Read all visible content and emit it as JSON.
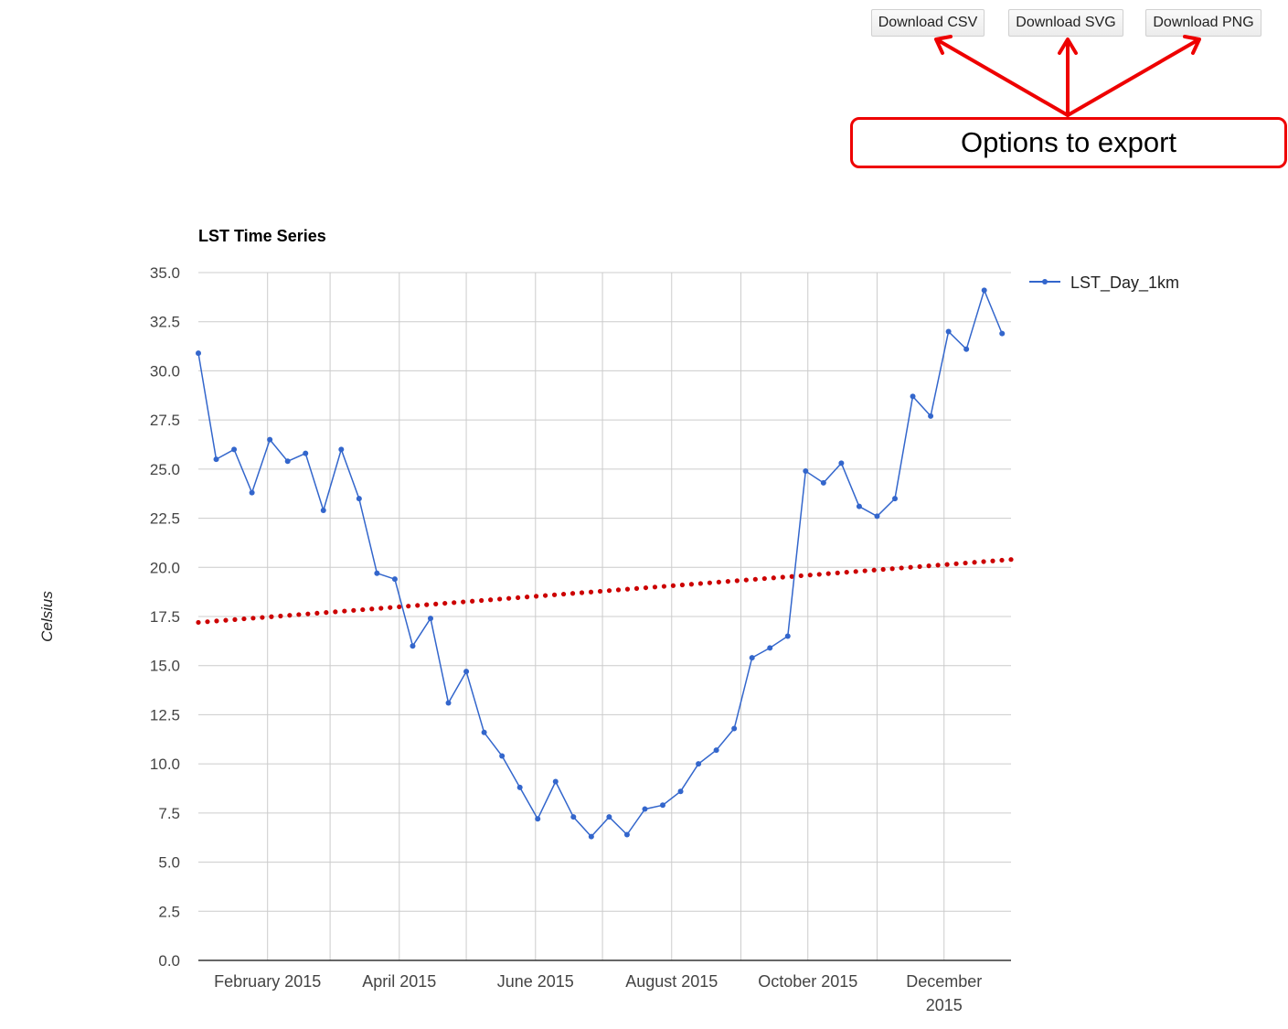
{
  "toolbar": {
    "download_csv": "Download CSV",
    "download_svg": "Download SVG",
    "download_png": "Download PNG"
  },
  "annotation": {
    "text": "Options to export",
    "color": "#ee0000"
  },
  "chart_data": {
    "type": "line",
    "title": "LST Time Series",
    "ylabel": "Celsius",
    "xlabel": "",
    "ylim": [
      0,
      35
    ],
    "xlim": [
      "2015-01-01",
      "2015-12-31"
    ],
    "grid": true,
    "legend": "right",
    "y_ticks": [
      "0.0",
      "2.5",
      "5.0",
      "7.5",
      "10.0",
      "12.5",
      "15.0",
      "17.5",
      "20.0",
      "22.5",
      "25.0",
      "27.5",
      "30.0",
      "32.5",
      "35.0"
    ],
    "x_ticks": [
      {
        "date": "2015-02-01",
        "label": [
          "February 2015"
        ]
      },
      {
        "date": "2015-04-01",
        "label": [
          "April 2015"
        ]
      },
      {
        "date": "2015-06-01",
        "label": [
          "June 2015"
        ]
      },
      {
        "date": "2015-08-01",
        "label": [
          "August 2015"
        ]
      },
      {
        "date": "2015-10-01",
        "label": [
          "October 2015"
        ]
      },
      {
        "date": "2015-12-01",
        "label": [
          "December",
          "2015"
        ]
      }
    ],
    "x_minor_gridlines": [
      "2015-03-01",
      "2015-05-01",
      "2015-07-01",
      "2015-09-01",
      "2015-11-01"
    ],
    "series": [
      {
        "name": "LST_Day_1km",
        "color": "#3366cc",
        "x": [
          "2015-01-01",
          "2015-01-09",
          "2015-01-17",
          "2015-01-25",
          "2015-02-02",
          "2015-02-10",
          "2015-02-18",
          "2015-02-26",
          "2015-03-06",
          "2015-03-14",
          "2015-03-22",
          "2015-03-30",
          "2015-04-07",
          "2015-04-15",
          "2015-04-23",
          "2015-05-01",
          "2015-05-09",
          "2015-05-17",
          "2015-05-25",
          "2015-06-02",
          "2015-06-10",
          "2015-06-18",
          "2015-06-26",
          "2015-07-04",
          "2015-07-12",
          "2015-07-20",
          "2015-07-28",
          "2015-08-05",
          "2015-08-13",
          "2015-08-21",
          "2015-08-29",
          "2015-09-06",
          "2015-09-14",
          "2015-09-22",
          "2015-09-30",
          "2015-10-08",
          "2015-10-16",
          "2015-10-24",
          "2015-11-01",
          "2015-11-09",
          "2015-11-17",
          "2015-11-25",
          "2015-12-03",
          "2015-12-11",
          "2015-12-19",
          "2015-12-27"
        ],
        "values": [
          30.9,
          25.5,
          26.0,
          23.8,
          26.5,
          25.4,
          25.8,
          22.9,
          26.0,
          23.5,
          19.7,
          19.4,
          16.0,
          17.4,
          13.1,
          14.7,
          11.6,
          10.4,
          8.8,
          7.2,
          9.1,
          7.3,
          6.3,
          7.3,
          6.4,
          7.7,
          7.9,
          8.6,
          10.0,
          10.7,
          11.8,
          15.4,
          15.9,
          16.5,
          24.9,
          24.3,
          25.3,
          23.1,
          22.6,
          23.5,
          28.7,
          27.7,
          32.0,
          31.1,
          34.1,
          31.9
        ]
      },
      {
        "name": "",
        "type": "trendline",
        "color": "#cc0000",
        "x": [
          "2015-01-01",
          "2015-12-31"
        ],
        "values": [
          17.2,
          20.4
        ]
      }
    ]
  }
}
